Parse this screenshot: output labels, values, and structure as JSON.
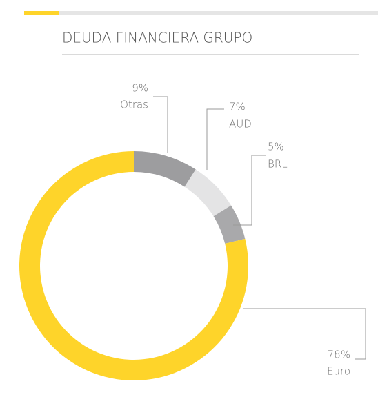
{
  "chart_data": {
    "type": "donut",
    "title": "DEUDA FINANCIERA GRUPO",
    "categories": [
      "Otras",
      "AUD",
      "BRL",
      "Euro"
    ],
    "values": [
      9,
      7,
      5,
      78
    ],
    "value_labels": [
      "9%",
      "7%",
      "5%",
      "78%"
    ],
    "colors": [
      "#9d9d9f",
      "#e4e4e5",
      "#a9a9ab",
      "#fed42a"
    ]
  }
}
